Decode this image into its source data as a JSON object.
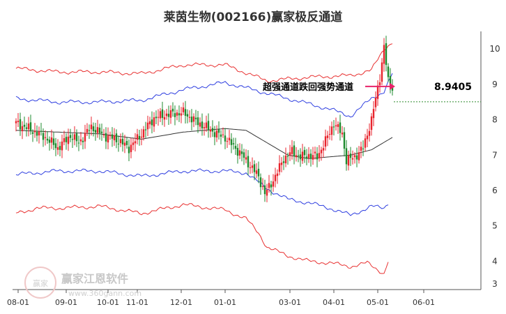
{
  "title": "莱茵生物(002166)赢家极反通道",
  "watermark": {
    "name": "赢家江恩软件",
    "url": "www.360gann.com",
    "logo_text": "赢家"
  },
  "colors": {
    "up": "#e8232c",
    "down": "#1e8a2e",
    "upper_band": "#e83030",
    "inner_upper": "#2f3fe0",
    "mid": "#333333",
    "inner_lower": "#2f3fe0",
    "lower_band": "#e83030",
    "arrow": "#e8236a",
    "dashed": "#2e8b2e"
  },
  "annotation": {
    "label": "超强通道跌回强势通道",
    "price": "8.9405"
  },
  "chart_data": {
    "type": "candlestick",
    "title": "莱茵生物(002166)赢家极反通道",
    "ylim": [
      3,
      10.3
    ],
    "y_ticks": [
      3,
      4,
      5,
      6,
      7,
      8,
      9,
      10
    ],
    "y_tick_labels": [
      "3",
      "4",
      "5",
      "6",
      "7",
      "8",
      "9",
      "10"
    ],
    "x_ticks": [
      {
        "label": "08-01",
        "i": 1
      },
      {
        "label": "09-01",
        "i": 24
      },
      {
        "label": "10-01",
        "i": 44
      },
      {
        "label": "11-01",
        "i": 58
      },
      {
        "label": "12-01",
        "i": 79
      },
      {
        "label": "01-01",
        "i": 100
      },
      {
        "label": "03-01",
        "i": 131
      },
      {
        "label": "04-01",
        "i": 152
      },
      {
        "label": "05-01",
        "i": 173
      },
      {
        "label": "06-01",
        "i": 195
      }
    ],
    "n_days": 200,
    "close_anchors": [
      [
        0,
        7.9
      ],
      [
        6,
        7.75
      ],
      [
        14,
        7.5
      ],
      [
        20,
        7.2
      ],
      [
        26,
        7.55
      ],
      [
        30,
        7.35
      ],
      [
        36,
        7.8
      ],
      [
        42,
        7.55
      ],
      [
        48,
        7.45
      ],
      [
        54,
        7.2
      ],
      [
        60,
        7.6
      ],
      [
        66,
        8.05
      ],
      [
        72,
        8.15
      ],
      [
        80,
        8.2
      ],
      [
        86,
        7.95
      ],
      [
        92,
        7.75
      ],
      [
        96,
        7.6
      ],
      [
        100,
        7.5
      ],
      [
        104,
        7.25
      ],
      [
        108,
        7.0
      ],
      [
        112,
        6.7
      ],
      [
        116,
        6.4
      ],
      [
        119,
        5.9
      ],
      [
        124,
        6.4
      ],
      [
        128,
        6.9
      ],
      [
        132,
        7.1
      ],
      [
        136,
        6.95
      ],
      [
        140,
        7.0
      ],
      [
        144,
        6.95
      ],
      [
        148,
        7.4
      ],
      [
        152,
        7.9
      ],
      [
        156,
        7.6
      ],
      [
        158,
        6.85
      ],
      [
        162,
        6.95
      ],
      [
        166,
        7.2
      ],
      [
        170,
        8.0
      ],
      [
        174,
        9.2
      ],
      [
        176,
        10.05
      ],
      [
        178,
        9.1
      ],
      [
        180,
        8.94
      ]
    ],
    "series": [
      {
        "key": "upper_band",
        "anchors": [
          [
            0,
            9.45
          ],
          [
            20,
            9.35
          ],
          [
            40,
            9.35
          ],
          [
            60,
            9.3
          ],
          [
            80,
            9.55
          ],
          [
            100,
            9.55
          ],
          [
            120,
            9.1
          ],
          [
            140,
            9.2
          ],
          [
            160,
            9.25
          ],
          [
            170,
            9.4
          ],
          [
            176,
            10.0
          ],
          [
            180,
            10.2
          ]
        ]
      },
      {
        "key": "inner_upper",
        "anchors": [
          [
            0,
            8.6
          ],
          [
            20,
            8.5
          ],
          [
            40,
            8.5
          ],
          [
            60,
            8.55
          ],
          [
            80,
            8.85
          ],
          [
            100,
            9.05
          ],
          [
            120,
            8.75
          ],
          [
            140,
            8.45
          ],
          [
            150,
            8.3
          ],
          [
            160,
            8.1
          ],
          [
            170,
            8.6
          ],
          [
            176,
            8.8
          ],
          [
            180,
            9.3
          ]
        ]
      },
      {
        "key": "mid",
        "anchors": [
          [
            0,
            7.7
          ],
          [
            20,
            7.65
          ],
          [
            40,
            7.6
          ],
          [
            60,
            7.45
          ],
          [
            80,
            7.65
          ],
          [
            100,
            7.75
          ],
          [
            110,
            7.7
          ],
          [
            120,
            7.35
          ],
          [
            130,
            7.0
          ],
          [
            140,
            6.9
          ],
          [
            150,
            6.95
          ],
          [
            160,
            7.0
          ],
          [
            170,
            7.15
          ],
          [
            180,
            7.5
          ]
        ]
      },
      {
        "key": "inner_lower",
        "anchors": [
          [
            0,
            6.45
          ],
          [
            20,
            6.55
          ],
          [
            40,
            6.55
          ],
          [
            60,
            6.4
          ],
          [
            80,
            6.55
          ],
          [
            100,
            6.55
          ],
          [
            110,
            6.5
          ],
          [
            120,
            6.05
          ],
          [
            130,
            5.75
          ],
          [
            140,
            5.65
          ],
          [
            150,
            5.5
          ],
          [
            160,
            5.3
          ],
          [
            170,
            5.55
          ],
          [
            176,
            5.5
          ],
          [
            178,
            5.65
          ]
        ]
      },
      {
        "key": "lower_band",
        "anchors": [
          [
            0,
            5.35
          ],
          [
            10,
            5.5
          ],
          [
            20,
            5.5
          ],
          [
            40,
            5.55
          ],
          [
            60,
            5.35
          ],
          [
            80,
            5.6
          ],
          [
            100,
            5.45
          ],
          [
            110,
            5.2
          ],
          [
            116,
            4.8
          ],
          [
            120,
            4.4
          ],
          [
            130,
            4.15
          ],
          [
            140,
            4.0
          ],
          [
            150,
            3.95
          ],
          [
            160,
            3.85
          ],
          [
            168,
            3.95
          ],
          [
            176,
            3.65
          ],
          [
            178,
            4.0
          ]
        ]
      }
    ],
    "marker_price": 8.9405
  }
}
